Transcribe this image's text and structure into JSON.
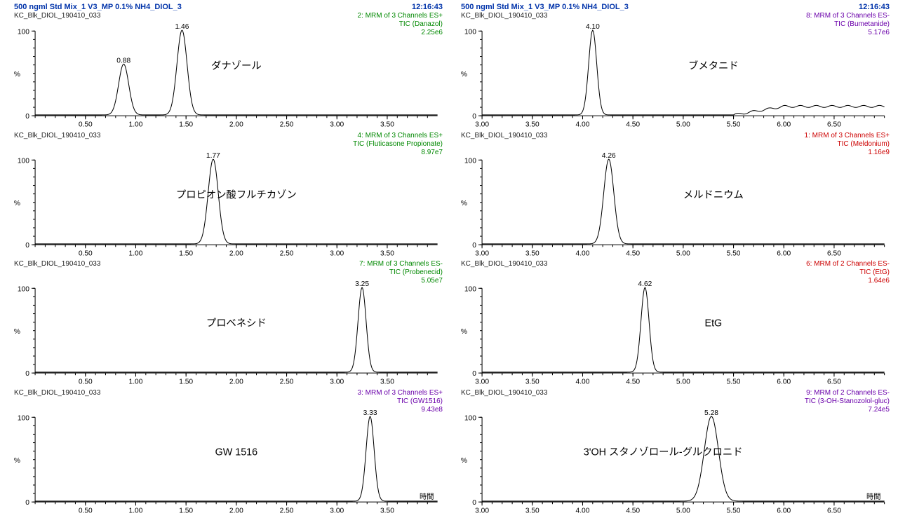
{
  "colors": {
    "title": "#0033aa",
    "green": "#008800",
    "red": "#cc0000",
    "purple": "#6a00aa",
    "axis": "#000000",
    "trace": "#000000",
    "bg": "#ffffff"
  },
  "font": {
    "header_pt": 11,
    "meta_pt": 10,
    "tick_pt": 10,
    "compound_pt": 14
  },
  "header": {
    "title": "500 ngml Std Mix_1 V3_MP 0.1% NH4_DIOL_3",
    "time": "12:16:43",
    "sample_id": "KC_Blk_DIOL_190410_033"
  },
  "xaxis_label": "時間",
  "panels": [
    {
      "compound": "ダナゾール",
      "compound_x": 2.0,
      "meta_line1": "2: MRM of 3 Channels ES+",
      "meta_line2": "TIC (Danazol)",
      "meta_line3": "2.25e6",
      "meta_color": "green",
      "xmin": 0,
      "xmax": 4,
      "xtick_start": 0.5,
      "xtick_step": 0.5,
      "show_title": true,
      "peaks": [
        {
          "rt": 0.88,
          "h": 60,
          "w": 0.05
        },
        {
          "rt": 1.46,
          "h": 100,
          "w": 0.05
        }
      ],
      "baseline_rise": null
    },
    {
      "compound": "ブメタニド",
      "compound_x": 5.3,
      "meta_line1": "8: MRM of 3 Channels ES-",
      "meta_line2": "TIC (Bumetanide)",
      "meta_line3": "5.17e6",
      "meta_color": "purple",
      "xmin": 3,
      "xmax": 7,
      "xtick_start": 3.0,
      "xtick_step": 0.5,
      "show_title": true,
      "peaks": [
        {
          "rt": 4.1,
          "h": 100,
          "w": 0.04
        }
      ],
      "baseline_rise": {
        "start": 5.5,
        "height": 10
      }
    },
    {
      "compound": "プロピオン酸フルチカゾン",
      "compound_x": 2.0,
      "meta_line1": "4: MRM of 3 Channels ES+",
      "meta_line2": "TIC (Fluticasone Propionate)",
      "meta_line3": "8.97e7",
      "meta_color": "green",
      "xmin": 0,
      "xmax": 4,
      "xtick_start": 0.5,
      "xtick_step": 0.5,
      "show_title": false,
      "peaks": [
        {
          "rt": 1.77,
          "h": 100,
          "w": 0.05
        }
      ],
      "baseline_rise": null
    },
    {
      "compound": "メルドニウム",
      "compound_x": 5.3,
      "meta_line1": "1: MRM of 3 Channels ES+",
      "meta_line2": "TIC (Meldonium)",
      "meta_line3": "1.16e9",
      "meta_color": "red",
      "xmin": 3,
      "xmax": 7,
      "xtick_start": 3.0,
      "xtick_step": 0.5,
      "show_title": false,
      "peaks": [
        {
          "rt": 4.26,
          "h": 100,
          "w": 0.05
        }
      ],
      "baseline_rise": null
    },
    {
      "compound": "プロベネシド",
      "compound_x": 2.0,
      "meta_line1": "7: MRM of 3 Channels ES-",
      "meta_line2": "TIC (Probenecid)",
      "meta_line3": "5.05e7",
      "meta_color": "green",
      "xmin": 0,
      "xmax": 4,
      "xtick_start": 0.5,
      "xtick_step": 0.5,
      "show_title": false,
      "peaks": [
        {
          "rt": 3.25,
          "h": 100,
          "w": 0.04
        }
      ],
      "baseline_rise": null
    },
    {
      "compound": "EtG",
      "compound_x": 5.3,
      "meta_line1": "6: MRM of 2 Channels ES-",
      "meta_line2": "TIC (EtG)",
      "meta_line3": "1.64e6",
      "meta_color": "red",
      "xmin": 3,
      "xmax": 7,
      "xtick_start": 3.0,
      "xtick_step": 0.5,
      "show_title": false,
      "peaks": [
        {
          "rt": 4.62,
          "h": 100,
          "w": 0.04
        }
      ],
      "baseline_rise": null
    },
    {
      "compound": "GW 1516",
      "compound_x": 2.0,
      "meta_line1": "3: MRM of 3 Channels ES+",
      "meta_line2": "TIC (GW1516)",
      "meta_line3": "9.43e8",
      "meta_color": "purple",
      "xmin": 0,
      "xmax": 4,
      "xtick_start": 0.5,
      "xtick_step": 0.5,
      "show_title": false,
      "show_xlabel": true,
      "peaks": [
        {
          "rt": 3.33,
          "h": 100,
          "w": 0.04
        }
      ],
      "baseline_rise": null
    },
    {
      "compound": "3'OH スタノゾロール-グルクロニド",
      "compound_x": 4.8,
      "meta_line1": "9: MRM of 2 Channels ES-",
      "meta_line2": "TIC (3-OH-Stanozolol-gluc)",
      "meta_line3": "7.24e5",
      "meta_color": "purple",
      "xmin": 3,
      "xmax": 7,
      "xtick_start": 3.0,
      "xtick_step": 0.5,
      "show_title": false,
      "show_xlabel": true,
      "peaks": [
        {
          "rt": 5.28,
          "h": 100,
          "w": 0.07
        }
      ],
      "baseline_rise": null
    }
  ],
  "yticks": [
    0,
    100
  ],
  "ylabel": "%"
}
